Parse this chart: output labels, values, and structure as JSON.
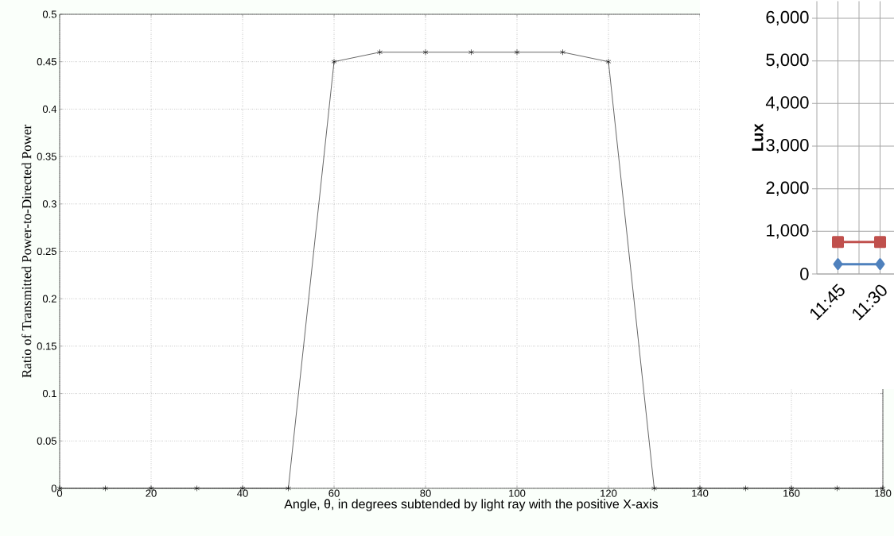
{
  "chart_data": [
    {
      "type": "line",
      "xlabel": "Angle, θ, in degrees subtended by light ray with the positive X-axis",
      "ylabel": "Ratio of Transmitted Power-to-Directed Power",
      "x": [
        0,
        10,
        20,
        30,
        40,
        50,
        60,
        70,
        80,
        90,
        100,
        110,
        120,
        130,
        140,
        150,
        160,
        170,
        180
      ],
      "series": [
        {
          "color": "#000000",
          "values": [
            0,
            0,
            0,
            0,
            0,
            0,
            0.45,
            0.46,
            0.46,
            0.46,
            0.46,
            0.46,
            0.45,
            0,
            0,
            0,
            0,
            0,
            0
          ]
        }
      ],
      "xlim": [
        0,
        180
      ],
      "ylim": [
        0,
        0.5
      ],
      "xticks": [
        0,
        20,
        40,
        60,
        80,
        100,
        120,
        140,
        160,
        180
      ],
      "yticks": [
        0,
        0.05,
        0.1,
        0.15,
        0.2,
        0.25,
        0.3,
        0.35,
        0.4,
        0.45,
        0.5
      ],
      "grid": true,
      "marker": "cross"
    },
    {
      "type": "line",
      "ylabel": "Lux",
      "categories": [
        "11:45",
        "11:30"
      ],
      "series": [
        {
          "color": "#c0504d",
          "values": [
            750,
            750
          ],
          "marker": "square"
        },
        {
          "color": "#4f81bd",
          "values": [
            230,
            230
          ],
          "marker": "diamond"
        }
      ],
      "ylim": [
        0,
        6400
      ],
      "yticks": [
        {
          "value": 0,
          "label": "0"
        },
        {
          "value": 1000,
          "label": "1,000"
        },
        {
          "value": 2000,
          "label": "2,000"
        },
        {
          "value": 3000,
          "label": "3,000"
        },
        {
          "value": 4000,
          "label": "4,000"
        },
        {
          "value": 5000,
          "label": "5,000"
        },
        {
          "value": 6000,
          "label": "6,000"
        }
      ],
      "grid": true
    }
  ]
}
